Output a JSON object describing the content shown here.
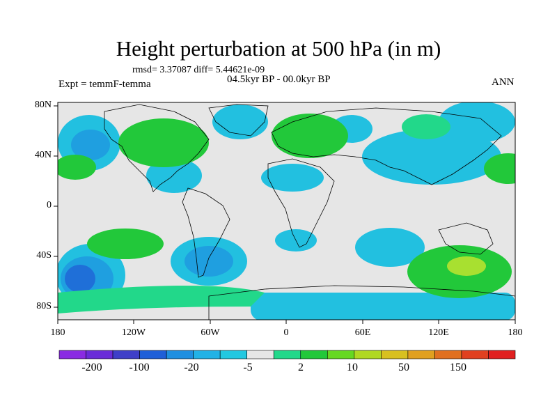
{
  "title": "Height perturbation at 500 hPa (in m)",
  "stats": "rmsd= 3.37087 diff= 5.44621e-09",
  "period": "04.5kyr BP - 00.0kyr BP",
  "experiment": "Expt = temmF-temma",
  "season": "ANN",
  "lat_ticks": [
    "80N",
    "40N",
    "0",
    "40S",
    "80S"
  ],
  "lon_ticks": [
    "180",
    "120W",
    "60W",
    "0",
    "60E",
    "120E",
    "180"
  ],
  "colorbar": {
    "labels": [
      "-200",
      "-100",
      "-20",
      "-5",
      "2",
      "10",
      "50",
      "150"
    ],
    "colors": [
      "#8a2be2",
      "#6a2cd8",
      "#3f3fc8",
      "#1f5fd8",
      "#1f8fe0",
      "#22b2e6",
      "#22c8e0",
      "#e6e6e6",
      "#22d88a",
      "#22c83a",
      "#66d822",
      "#b0d822",
      "#d8c020",
      "#e0a020",
      "#e07020",
      "#e04020",
      "#e02020"
    ]
  },
  "map_colors": {
    "land_bg": "#e6e6e6",
    "neg_light": "#22c0e0",
    "neg_mid": "#1f9fe0",
    "neg_strong": "#1f6fd8",
    "pos_light": "#22d88a",
    "pos_mid": "#22c83a",
    "pos_strong": "#a8e030"
  }
}
